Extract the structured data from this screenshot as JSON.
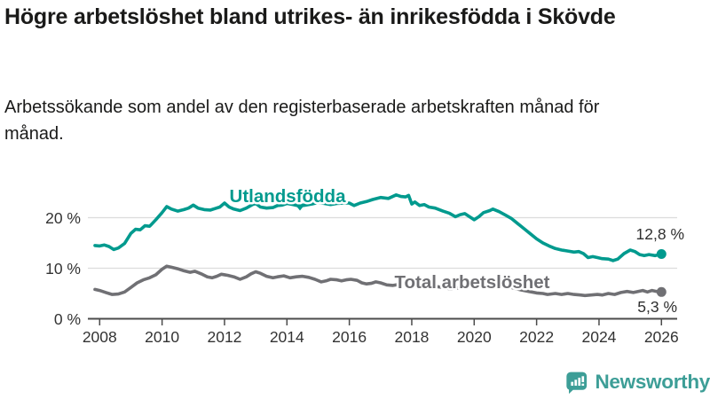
{
  "header": {
    "title": "Högre arbetslöshet bland utrikes- än inrikesfödda i Skövde",
    "subtitle": "Arbetssökande som andel av den registerbaserade arbetskraften månad för månad."
  },
  "chart_data": {
    "type": "line",
    "title": "Högre arbetslöshet bland utrikes- än inrikesfödda i Skövde",
    "xlabel": "",
    "ylabel": "",
    "unit": "%",
    "grid": "horizontal",
    "legend_position": "inline-labels",
    "x_axis": {
      "ticks": [
        2008,
        2010,
        2012,
        2014,
        2016,
        2018,
        2020,
        2022,
        2024,
        2026
      ],
      "range": [
        2007.85,
        2026.4
      ]
    },
    "y_axis": {
      "ticks": [
        0,
        10,
        20
      ],
      "tick_labels": [
        "0 %",
        "10 %",
        "20 %"
      ],
      "range": [
        0,
        26
      ]
    },
    "style": {
      "grid_color": "#dcdcdc",
      "axis_color": "#4b4b4b",
      "text_color": "#333333"
    },
    "series": [
      {
        "name": "Utlandsfödda",
        "color": "#009a8e",
        "end_label": "12,8 %",
        "end_value": 12.8,
        "points": [
          [
            2007.85,
            14.5
          ],
          [
            2008.0,
            14.4
          ],
          [
            2008.15,
            14.6
          ],
          [
            2008.3,
            14.3
          ],
          [
            2008.45,
            13.7
          ],
          [
            2008.6,
            14.0
          ],
          [
            2008.8,
            14.9
          ],
          [
            2009.0,
            16.9
          ],
          [
            2009.15,
            17.7
          ],
          [
            2009.3,
            17.6
          ],
          [
            2009.45,
            18.4
          ],
          [
            2009.6,
            18.3
          ],
          [
            2009.8,
            19.6
          ],
          [
            2010.0,
            21.0
          ],
          [
            2010.15,
            22.2
          ],
          [
            2010.3,
            21.7
          ],
          [
            2010.5,
            21.3
          ],
          [
            2010.7,
            21.6
          ],
          [
            2010.85,
            21.9
          ],
          [
            2011.0,
            22.5
          ],
          [
            2011.15,
            21.9
          ],
          [
            2011.35,
            21.6
          ],
          [
            2011.55,
            21.5
          ],
          [
            2011.7,
            21.8
          ],
          [
            2011.85,
            22.1
          ],
          [
            2012.0,
            22.9
          ],
          [
            2012.15,
            22.1
          ],
          [
            2012.3,
            21.7
          ],
          [
            2012.5,
            21.4
          ],
          [
            2012.7,
            21.9
          ],
          [
            2012.9,
            22.6
          ],
          [
            2013.0,
            22.8
          ],
          [
            2013.15,
            22.1
          ],
          [
            2013.35,
            21.9
          ],
          [
            2013.55,
            22.0
          ],
          [
            2013.7,
            22.4
          ],
          [
            2013.85,
            22.5
          ],
          [
            2014.0,
            22.8
          ],
          [
            2014.2,
            22.6
          ],
          [
            2014.4,
            22.3
          ],
          [
            2014.6,
            22.5
          ],
          [
            2014.8,
            22.7
          ],
          [
            2015.0,
            23.0
          ],
          [
            2015.2,
            22.8
          ],
          [
            2015.4,
            22.6
          ],
          [
            2015.6,
            22.8
          ],
          [
            2015.8,
            22.9
          ],
          [
            2016.0,
            22.9
          ],
          [
            2016.15,
            22.4
          ],
          [
            2016.35,
            22.9
          ],
          [
            2016.55,
            23.2
          ],
          [
            2016.75,
            23.6
          ],
          [
            2017.0,
            24.0
          ],
          [
            2017.25,
            23.8
          ],
          [
            2017.5,
            24.5
          ],
          [
            2017.65,
            24.2
          ],
          [
            2017.8,
            24.1
          ],
          [
            2017.9,
            24.4
          ],
          [
            2018.0,
            22.7
          ],
          [
            2018.1,
            23.1
          ],
          [
            2018.25,
            22.4
          ],
          [
            2018.4,
            22.6
          ],
          [
            2018.55,
            22.1
          ],
          [
            2018.75,
            21.9
          ],
          [
            2019.0,
            21.3
          ],
          [
            2019.2,
            20.9
          ],
          [
            2019.4,
            20.2
          ],
          [
            2019.55,
            20.6
          ],
          [
            2019.7,
            20.8
          ],
          [
            2019.85,
            20.2
          ],
          [
            2020.0,
            19.6
          ],
          [
            2020.15,
            20.2
          ],
          [
            2020.3,
            21.0
          ],
          [
            2020.5,
            21.4
          ],
          [
            2020.6,
            21.7
          ],
          [
            2020.8,
            21.2
          ],
          [
            2021.0,
            20.5
          ],
          [
            2021.2,
            19.8
          ],
          [
            2021.4,
            18.8
          ],
          [
            2021.6,
            17.8
          ],
          [
            2021.8,
            16.8
          ],
          [
            2022.0,
            15.8
          ],
          [
            2022.2,
            15.0
          ],
          [
            2022.4,
            14.4
          ],
          [
            2022.6,
            13.9
          ],
          [
            2022.8,
            13.6
          ],
          [
            2023.0,
            13.4
          ],
          [
            2023.2,
            13.2
          ],
          [
            2023.35,
            13.3
          ],
          [
            2023.5,
            12.9
          ],
          [
            2023.65,
            12.1
          ],
          [
            2023.8,
            12.3
          ],
          [
            2023.95,
            12.1
          ],
          [
            2024.1,
            11.9
          ],
          [
            2024.3,
            11.8
          ],
          [
            2024.45,
            11.5
          ],
          [
            2024.6,
            11.8
          ],
          [
            2024.8,
            12.9
          ],
          [
            2025.0,
            13.6
          ],
          [
            2025.15,
            13.3
          ],
          [
            2025.3,
            12.7
          ],
          [
            2025.45,
            12.5
          ],
          [
            2025.6,
            12.7
          ],
          [
            2025.8,
            12.5
          ],
          [
            2026.0,
            12.8
          ]
        ]
      },
      {
        "name": "Total arbetslöshet",
        "color": "#707074",
        "end_label": "5,3 %",
        "end_value": 5.3,
        "points": [
          [
            2007.85,
            5.8
          ],
          [
            2008.0,
            5.6
          ],
          [
            2008.2,
            5.2
          ],
          [
            2008.4,
            4.8
          ],
          [
            2008.6,
            4.9
          ],
          [
            2008.8,
            5.3
          ],
          [
            2009.0,
            6.2
          ],
          [
            2009.2,
            7.1
          ],
          [
            2009.4,
            7.7
          ],
          [
            2009.6,
            8.1
          ],
          [
            2009.8,
            8.7
          ],
          [
            2010.0,
            9.8
          ],
          [
            2010.15,
            10.4
          ],
          [
            2010.3,
            10.2
          ],
          [
            2010.5,
            9.9
          ],
          [
            2010.7,
            9.5
          ],
          [
            2010.9,
            9.2
          ],
          [
            2011.05,
            9.4
          ],
          [
            2011.25,
            8.9
          ],
          [
            2011.45,
            8.3
          ],
          [
            2011.6,
            8.1
          ],
          [
            2011.75,
            8.4
          ],
          [
            2011.9,
            8.8
          ],
          [
            2012.1,
            8.6
          ],
          [
            2012.3,
            8.3
          ],
          [
            2012.5,
            7.8
          ],
          [
            2012.7,
            8.3
          ],
          [
            2012.85,
            8.9
          ],
          [
            2013.0,
            9.3
          ],
          [
            2013.15,
            9.0
          ],
          [
            2013.35,
            8.4
          ],
          [
            2013.55,
            8.1
          ],
          [
            2013.7,
            8.3
          ],
          [
            2013.9,
            8.5
          ],
          [
            2014.1,
            8.1
          ],
          [
            2014.3,
            8.3
          ],
          [
            2014.5,
            8.4
          ],
          [
            2014.7,
            8.2
          ],
          [
            2014.9,
            7.8
          ],
          [
            2015.1,
            7.3
          ],
          [
            2015.25,
            7.5
          ],
          [
            2015.4,
            7.8
          ],
          [
            2015.6,
            7.7
          ],
          [
            2015.75,
            7.5
          ],
          [
            2015.9,
            7.7
          ],
          [
            2016.05,
            7.8
          ],
          [
            2016.25,
            7.6
          ],
          [
            2016.4,
            7.1
          ],
          [
            2016.55,
            6.9
          ],
          [
            2016.7,
            7.0
          ],
          [
            2016.85,
            7.3
          ],
          [
            2017.0,
            7.1
          ],
          [
            2017.2,
            6.7
          ],
          [
            2017.4,
            6.6
          ],
          [
            2017.6,
            6.8
          ],
          [
            2017.8,
            6.9
          ],
          [
            2018.0,
            6.8
          ],
          [
            2018.25,
            6.5
          ],
          [
            2018.5,
            6.3
          ],
          [
            2018.75,
            6.4
          ],
          [
            2019.0,
            6.2
          ],
          [
            2019.25,
            5.9
          ],
          [
            2019.5,
            6.1
          ],
          [
            2019.75,
            6.3
          ],
          [
            2020.0,
            6.6
          ],
          [
            2020.25,
            7.0
          ],
          [
            2020.5,
            7.2
          ],
          [
            2020.75,
            6.9
          ],
          [
            2021.0,
            6.5
          ],
          [
            2021.25,
            6.1
          ],
          [
            2021.5,
            5.7
          ],
          [
            2021.75,
            5.4
          ],
          [
            2022.0,
            5.1
          ],
          [
            2022.2,
            5.0
          ],
          [
            2022.35,
            4.8
          ],
          [
            2022.6,
            5.0
          ],
          [
            2022.8,
            4.8
          ],
          [
            2023.0,
            5.0
          ],
          [
            2023.2,
            4.8
          ],
          [
            2023.4,
            4.7
          ],
          [
            2023.55,
            4.6
          ],
          [
            2023.75,
            4.7
          ],
          [
            2023.95,
            4.8
          ],
          [
            2024.1,
            4.7
          ],
          [
            2024.3,
            5.0
          ],
          [
            2024.5,
            4.8
          ],
          [
            2024.7,
            5.2
          ],
          [
            2024.9,
            5.4
          ],
          [
            2025.1,
            5.2
          ],
          [
            2025.25,
            5.4
          ],
          [
            2025.4,
            5.6
          ],
          [
            2025.55,
            5.3
          ],
          [
            2025.7,
            5.6
          ],
          [
            2025.85,
            5.4
          ],
          [
            2026.0,
            5.3
          ]
        ]
      }
    ]
  },
  "branding": {
    "logo_text": "Newsworthy",
    "color": "#3d9e97"
  }
}
